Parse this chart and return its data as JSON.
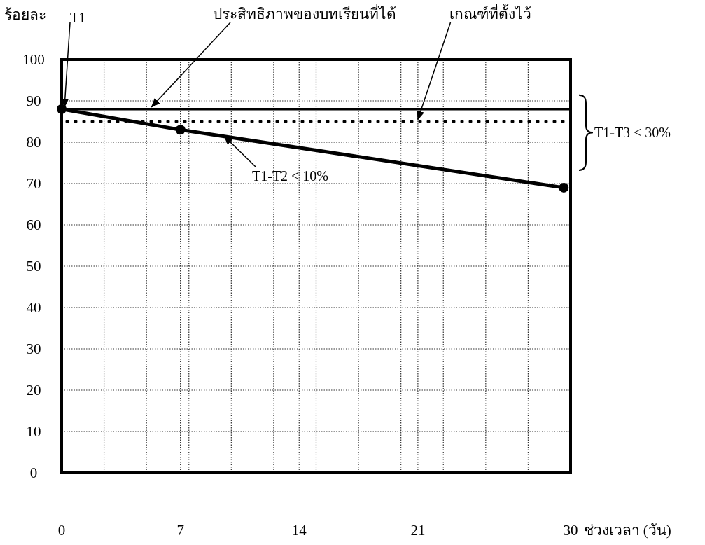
{
  "chart_data": {
    "type": "line",
    "ylabel": "ร้อยละ",
    "xlabel": "ช่วงเวลา (วัน)",
    "x": [
      0,
      7,
      29.6
    ],
    "series": [
      {
        "color": "#000000",
        "values": [
          88,
          83,
          69
        ]
      }
    ],
    "marker": "circle",
    "line_style": "solid",
    "xlim": [
      0,
      30
    ],
    "xticks": [
      0,
      {
        "value": 2.5,
        "label": null
      },
      {
        "value": 5,
        "label": null
      },
      7,
      {
        "value": 7.5,
        "label": null
      },
      {
        "value": 10,
        "label": null
      },
      {
        "value": 12.5,
        "label": null
      },
      14,
      {
        "value": 15,
        "label": null
      },
      {
        "value": 17.5,
        "label": null
      },
      {
        "value": 20,
        "label": null
      },
      21,
      {
        "value": 22.5,
        "label": null
      },
      {
        "value": 25,
        "label": null
      },
      {
        "value": 27.5,
        "label": null
      },
      30
    ],
    "ylim": [
      0,
      100
    ],
    "yticks": [
      0,
      10,
      20,
      30,
      40,
      50,
      60,
      70,
      80,
      90,
      100
    ],
    "grid": true,
    "ref_lines": [
      {
        "axis": "y",
        "value": 88,
        "label": "ประสิทธิภาพของบทเรียนที่ได้",
        "color": "#000000",
        "line_style": "solid"
      },
      {
        "axis": "y",
        "value": 85,
        "label": "เกณฑ์ที่ตั้งไว้",
        "color": "#000000",
        "line_style": "dotted"
      }
    ],
    "annotations": [
      {
        "text": "T1",
        "x": 0,
        "y": 88
      },
      {
        "text": "T1-T2 < 10%",
        "x": 9.5,
        "y": 82
      },
      "T1-T3 < 30%"
    ]
  }
}
